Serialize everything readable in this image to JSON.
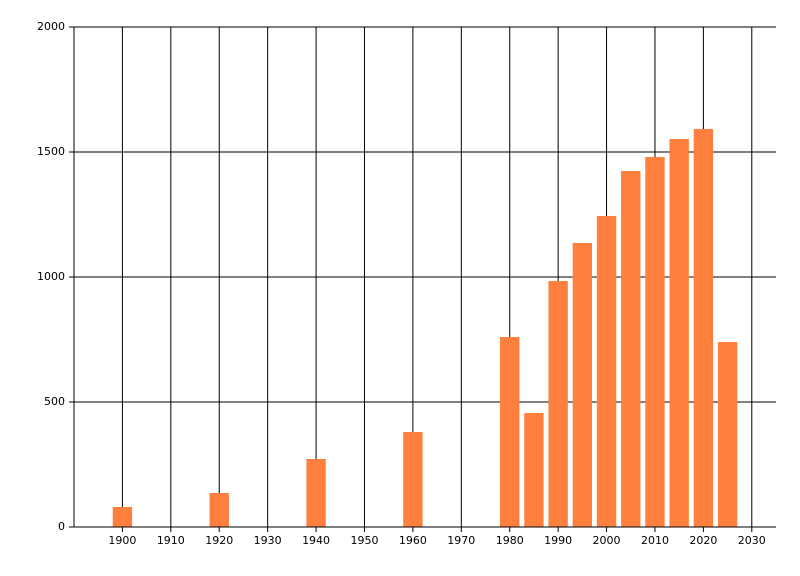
{
  "chart_data": {
    "type": "bar",
    "x": [
      1900,
      1920,
      1940,
      1960,
      1980,
      1985,
      1990,
      1995,
      2000,
      2005,
      2010,
      2015,
      2020,
      2025
    ],
    "values": [
      80,
      136,
      272,
      380,
      760,
      456,
      984,
      1136,
      1244,
      1424,
      1480,
      1552,
      1592,
      740
    ],
    "color": "#ff7f3f",
    "xlim": [
      1890,
      2035
    ],
    "xticks": [
      1900,
      1910,
      1920,
      1930,
      1940,
      1950,
      1960,
      1970,
      1980,
      1990,
      2000,
      2010,
      2020,
      2030
    ],
    "ylim": [
      0,
      2000
    ],
    "yticks": [
      0,
      500,
      1000,
      1500,
      2000
    ],
    "grid": true
  }
}
